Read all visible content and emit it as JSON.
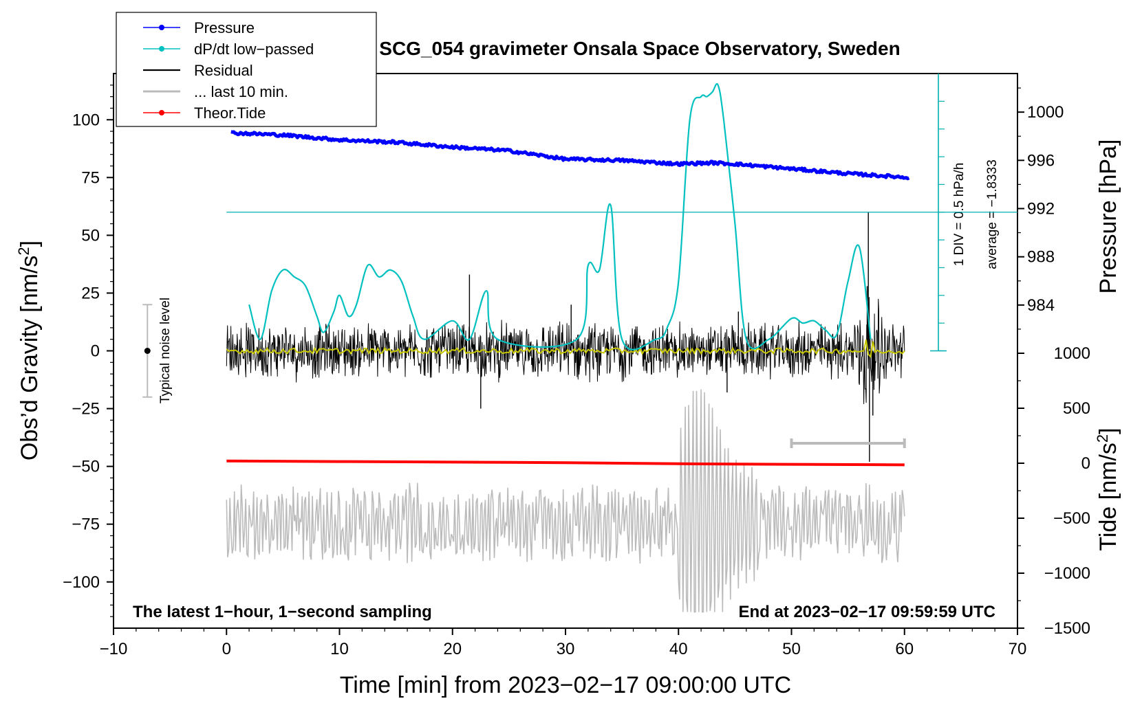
{
  "chart_data": {
    "type": "line",
    "title": "SCG_054 gravimeter Onsala Space Observatory, Sweden",
    "xlabel": "Time [min] from 2023−02−17 09:00:00 UTC",
    "ylabel_left_main": "Obs’d Gravity [nm/s",
    "ylabel_left_sup": "2",
    "ylabel_left_close": "]",
    "ylabel_right_pressure": "Pressure [hPa]",
    "ylabel_right_tide_main": "Tide [nm/s",
    "ylabel_right_tide_sup": "2",
    "ylabel_right_tide_close": "]",
    "xlim": [
      -10,
      70
    ],
    "ylim": [
      -120,
      120
    ],
    "x_ticks": [
      "−10",
      "0",
      "10",
      "20",
      "30",
      "40",
      "50",
      "60",
      "70"
    ],
    "x_tick_values": [
      -10,
      0,
      10,
      20,
      30,
      40,
      50,
      60,
      70
    ],
    "y_ticks": [
      "100",
      "75",
      "50",
      "25",
      "0",
      "−25",
      "−50",
      "−75",
      "−100"
    ],
    "y_tick_values": [
      100,
      75,
      50,
      25,
      0,
      -25,
      -50,
      -75,
      -100
    ],
    "pressure_axis": {
      "ticks": [
        "1000",
        "996",
        "992",
        "988",
        "984"
      ],
      "tick_values": [
        1000,
        996,
        992,
        988,
        984
      ],
      "range": [
        980,
        1003.2
      ]
    },
    "tide_axis": {
      "ticks": [
        "1000",
        "500",
        "0",
        "−500",
        "−1000",
        "−1500"
      ],
      "tick_values": [
        1000,
        500,
        0,
        -500,
        -1000,
        -1500
      ],
      "range": [
        -1500,
        1000
      ]
    },
    "corner_left": "The latest 1−hour, 1−second sampling",
    "corner_right": "End at 2023−02−17 09:59:59 UTC",
    "noise_label": "Typical noise level",
    "noise_bar": {
      "x": -7,
      "center": 0,
      "half_range": 20
    },
    "dpdt_scale_label": "1 DIV = 0.5 hPa/h",
    "dpdt_average_label": "average = −1.8333",
    "dpdt_ref_level": 60,
    "dpdt_scale_axis_x": 63,
    "last10_bar": {
      "x0": 50,
      "x1": 60,
      "y": -40
    },
    "legend": [
      {
        "label": "Pressure",
        "color": "#0000ff",
        "marker": true
      },
      {
        "label": "dP/dt low−passed",
        "color": "#00c0c0",
        "marker": true
      },
      {
        "label": "Residual",
        "color": "#000000",
        "marker": false
      },
      {
        "label": "... last 10 min.",
        "color": "#bbbbbb",
        "marker": false
      },
      {
        "label": "Theor.Tide",
        "color": "#ff0000",
        "marker": true
      }
    ],
    "series": [
      {
        "name": "Pressure",
        "axis": "pressure",
        "color": "#0000ff",
        "x": [
          0,
          5,
          10,
          15,
          20,
          25,
          30,
          35,
          40,
          43,
          45,
          50,
          55,
          60
        ],
        "y": [
          998.3,
          998.1,
          997.7,
          997.5,
          997.1,
          996.8,
          996.1,
          996.0,
          995.7,
          995.8,
          995.7,
          995.3,
          994.9,
          994.6
        ]
      },
      {
        "name": "dP/dt low−passed",
        "axis": "gravity",
        "color": "#00c0c0",
        "x": [
          2,
          3,
          4,
          5,
          6,
          7,
          8,
          8.6,
          9.5,
          10,
          10.8,
          11.5,
          12.5,
          13.5,
          14.5,
          15.5,
          16.5,
          17.5,
          20,
          21.5,
          23,
          24,
          31,
          32,
          33,
          34,
          35,
          38,
          39,
          40,
          41,
          42,
          42.5,
          43,
          43.5,
          44,
          45,
          46,
          48,
          50,
          51,
          52,
          53,
          54,
          55,
          56,
          57
        ],
        "y": [
          20,
          5,
          26,
          35,
          32,
          28,
          15,
          8,
          17,
          24,
          15,
          20,
          37,
          32,
          35,
          30,
          15,
          5,
          13,
          5,
          26,
          5,
          5,
          37,
          35,
          63,
          5,
          5,
          10,
          30,
          100,
          110,
          110,
          112,
          115,
          100,
          55,
          5,
          5,
          14,
          12,
          13,
          9,
          7,
          30,
          45,
          5
        ]
      },
      {
        "name": "Residual",
        "axis": "gravity",
        "color": "#000000",
        "x_range": [
          0,
          60
        ],
        "noise_half_amplitude": 10,
        "spikes": [
          {
            "x": 21.5,
            "y": 33
          },
          {
            "x": 22.5,
            "y": -25
          },
          {
            "x": 45.3,
            "y": 17
          },
          {
            "x": 56.8,
            "y": 60
          },
          {
            "x": 56.9,
            "y": -48
          },
          {
            "x": 56.7,
            "y": 28
          },
          {
            "x": 57.2,
            "y": -28
          },
          {
            "x": 44.3,
            "y": -18
          },
          {
            "x": 30.5,
            "y": 20
          }
        ]
      },
      {
        "name": "Residual smoothed",
        "axis": "gravity",
        "color": "#c8c800",
        "x_range": [
          0,
          60
        ],
        "level": 0
      },
      {
        "name": "... last 10 min.",
        "axis": "gravity",
        "color": "#bbbbbb",
        "x_range": [
          0,
          60
        ],
        "baseline": -75,
        "burst": {
          "x0": 40,
          "x1": 47,
          "peak_high": -15,
          "peak_low": -113
        }
      },
      {
        "name": "Theor.Tide",
        "axis": "tide",
        "color": "#ff0000",
        "x": [
          0,
          10,
          20,
          30,
          40,
          50,
          60
        ],
        "y": [
          20,
          15,
          10,
          5,
          -5,
          -10,
          -15
        ]
      }
    ]
  }
}
